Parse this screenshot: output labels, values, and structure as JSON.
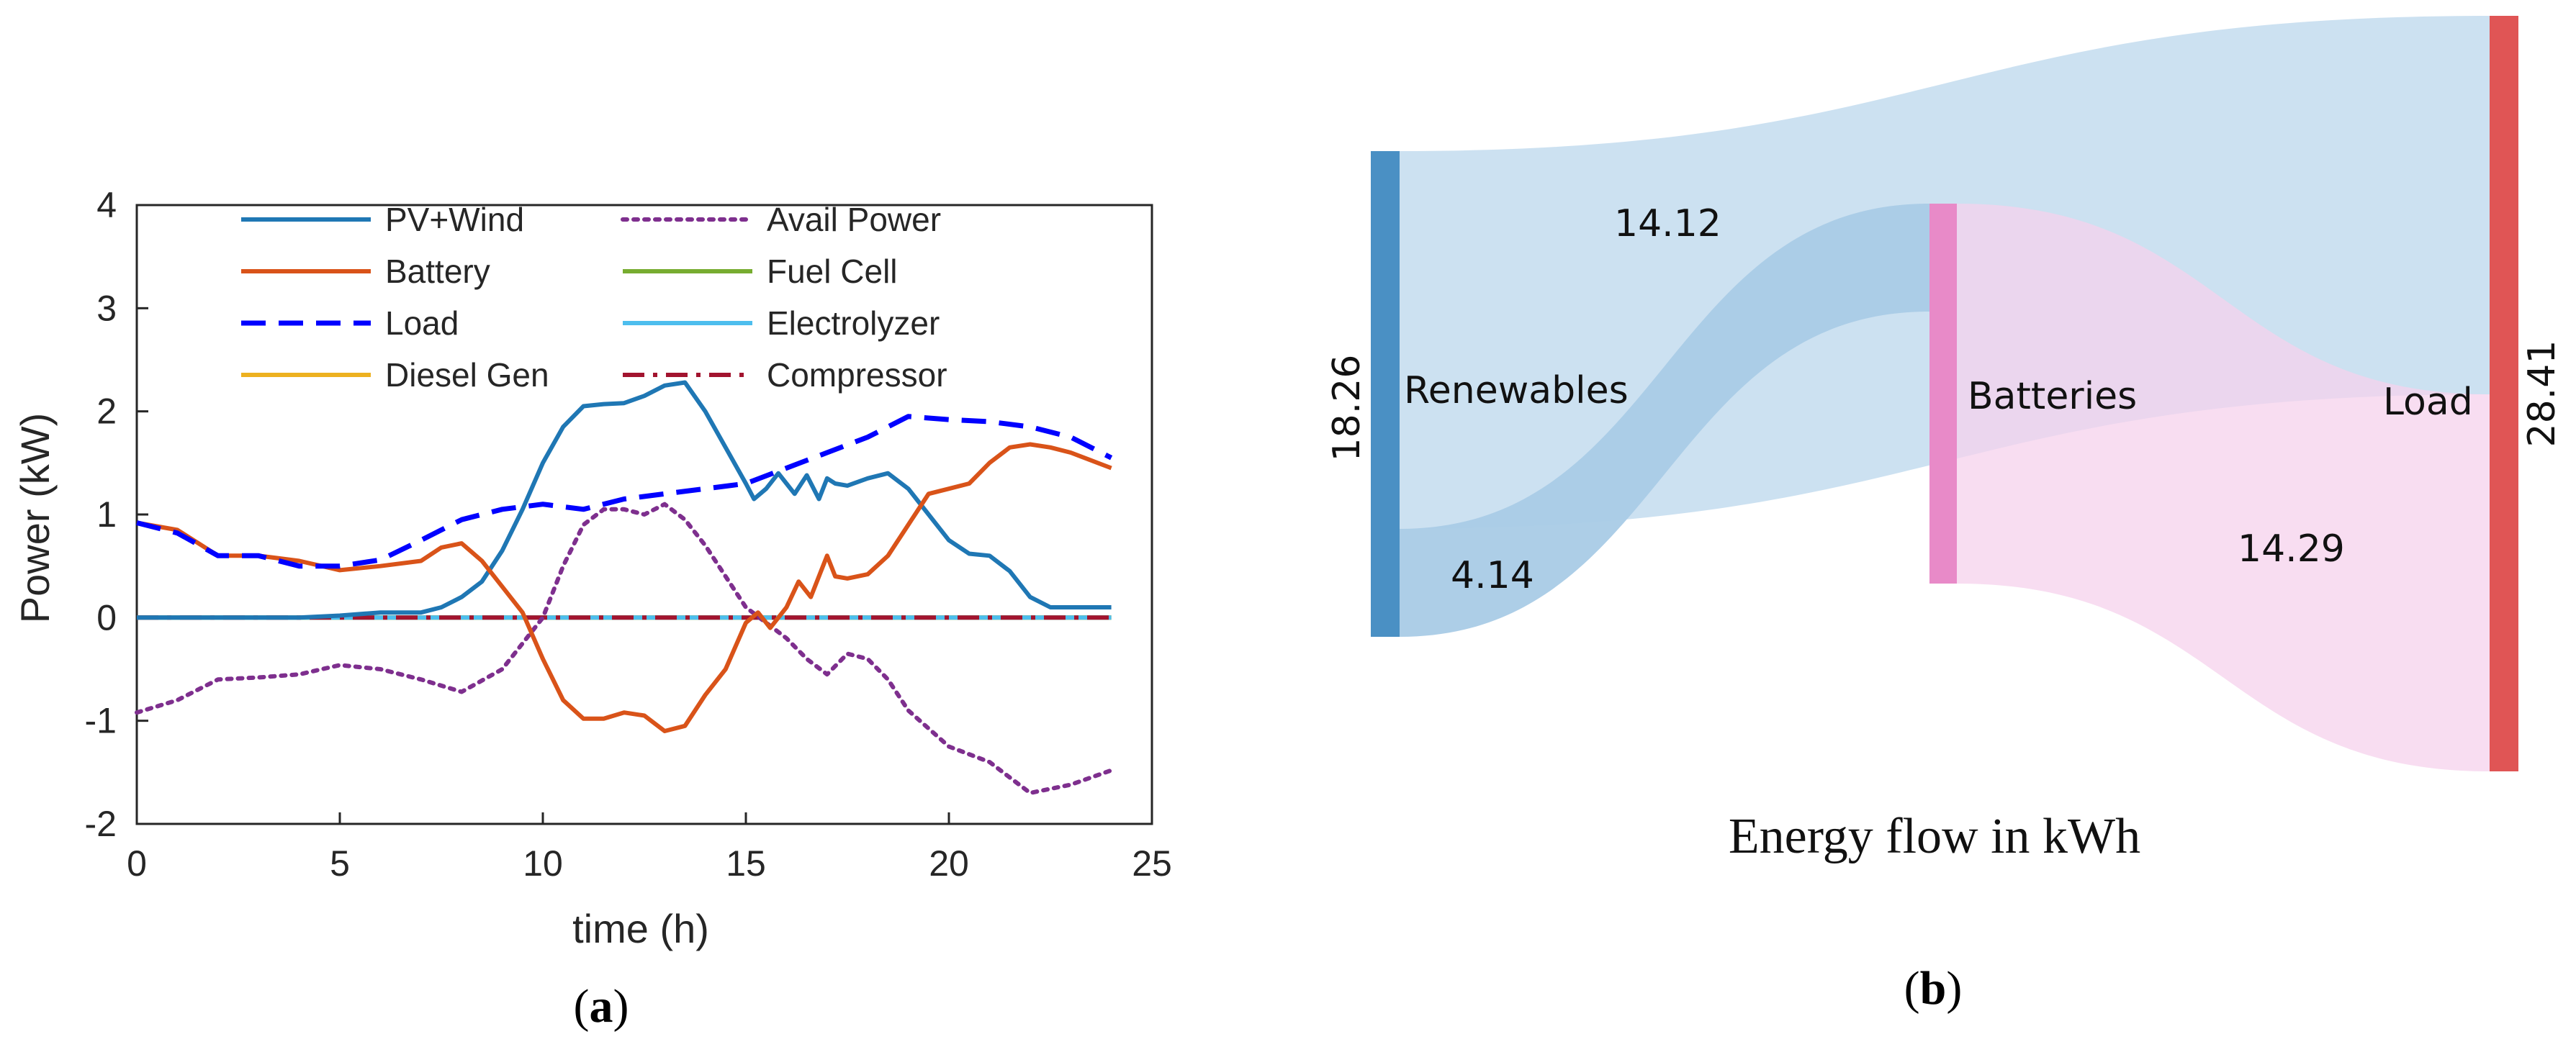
{
  "colors": {
    "pv_wind": "#1f77b4",
    "battery": "#d95319",
    "load": "#0000ff",
    "diesel": "#edb120",
    "avail": "#7e2f8e",
    "fuel_cell": "#77ac30",
    "electrolyzer": "#4dbeee",
    "compressor": "#a2142f",
    "renew_node": "#4a90c4",
    "batt_node": "#e88ac8",
    "load_node": "#e05555",
    "blue_flow": "#c9dff0",
    "pink_flow": "#f6d2ec"
  },
  "chart_data": [
    {
      "type": "line",
      "panel": "(a)",
      "caption_letter": "a",
      "xlabel": "time  (h)",
      "ylabel": "Power (kW)",
      "xlim": [
        0,
        25
      ],
      "ylim": [
        -2,
        4
      ],
      "xticks": [
        "0",
        "5",
        "10",
        "15",
        "20",
        "25"
      ],
      "yticks": [
        "-2",
        "-1",
        "0",
        "1",
        "2",
        "3",
        "4"
      ],
      "legend_position": "top, two columns",
      "series": [
        {
          "name": "PV+Wind",
          "color_key": "pv_wind",
          "style": "solid",
          "x": [
            0,
            2,
            4,
            5,
            6,
            7,
            7.5,
            8,
            8.5,
            9,
            9.5,
            10,
            10.5,
            11,
            11.5,
            12,
            12.5,
            13,
            13.5,
            14,
            14.5,
            15,
            15.2,
            15.5,
            15.8,
            16,
            16.2,
            16.5,
            16.8,
            17,
            17.2,
            17.5,
            18,
            18.5,
            19,
            19.5,
            20,
            20.5,
            21,
            21.5,
            22,
            22.5,
            23,
            24
          ],
          "y": [
            0.0,
            0.0,
            0.0,
            0.02,
            0.05,
            0.05,
            0.1,
            0.2,
            0.35,
            0.65,
            1.05,
            1.5,
            1.85,
            2.05,
            2.07,
            2.08,
            2.15,
            2.25,
            2.28,
            2.0,
            1.65,
            1.3,
            1.15,
            1.25,
            1.4,
            1.3,
            1.2,
            1.38,
            1.15,
            1.35,
            1.3,
            1.28,
            1.35,
            1.4,
            1.25,
            1.0,
            0.75,
            0.62,
            0.6,
            0.45,
            0.2,
            0.1,
            0.1,
            0.1
          ]
        },
        {
          "name": "Avail Power",
          "color_key": "avail",
          "style": "dotted",
          "x": [
            0,
            1,
            2,
            3,
            4,
            5,
            6,
            7,
            8,
            9,
            10,
            10.5,
            11,
            11.5,
            12,
            12.5,
            13,
            13.5,
            14,
            14.5,
            15,
            15.5,
            16,
            16.5,
            17,
            17.5,
            18,
            18.5,
            19,
            20,
            21,
            22,
            23,
            24
          ],
          "y": [
            -0.92,
            -0.8,
            -0.6,
            -0.58,
            -0.55,
            -0.46,
            -0.5,
            -0.6,
            -0.72,
            -0.5,
            0.0,
            0.5,
            0.9,
            1.05,
            1.05,
            1.0,
            1.1,
            0.95,
            0.7,
            0.4,
            0.1,
            -0.05,
            -0.2,
            -0.4,
            -0.55,
            -0.35,
            -0.4,
            -0.6,
            -0.9,
            -1.25,
            -1.4,
            -1.7,
            -1.62,
            -1.48
          ]
        },
        {
          "name": "Battery",
          "color_key": "battery",
          "style": "solid",
          "x": [
            0,
            1,
            2,
            3,
            4,
            5,
            6,
            7,
            7.5,
            8,
            8.5,
            9,
            9.5,
            10,
            10.5,
            11,
            11.5,
            12,
            12.5,
            13,
            13.5,
            14,
            14.5,
            15,
            15.3,
            15.6,
            16,
            16.3,
            16.6,
            17,
            17.2,
            17.5,
            18,
            18.5,
            19,
            19.5,
            20,
            20.5,
            21,
            21.5,
            22,
            22.5,
            23,
            24
          ],
          "y": [
            0.92,
            0.85,
            0.6,
            0.6,
            0.55,
            0.46,
            0.5,
            0.55,
            0.68,
            0.72,
            0.55,
            0.3,
            0.05,
            -0.4,
            -0.8,
            -0.98,
            -0.98,
            -0.92,
            -0.95,
            -1.1,
            -1.05,
            -0.75,
            -0.5,
            -0.05,
            0.05,
            -0.1,
            0.1,
            0.35,
            0.2,
            0.6,
            0.4,
            0.38,
            0.42,
            0.6,
            0.9,
            1.2,
            1.25,
            1.3,
            1.5,
            1.65,
            1.68,
            1.65,
            1.6,
            1.45
          ]
        },
        {
          "name": "Fuel Cell",
          "color_key": "fuel_cell",
          "style": "solid",
          "x": [
            0,
            24
          ],
          "y": [
            0,
            0
          ]
        },
        {
          "name": "Load",
          "color_key": "load",
          "style": "dashed",
          "x": [
            0,
            1,
            2,
            3,
            4,
            5,
            6,
            7,
            8,
            9,
            10,
            11,
            12,
            13,
            14,
            15,
            16,
            17,
            18,
            19,
            20,
            21,
            22,
            23,
            24
          ],
          "y": [
            0.92,
            0.82,
            0.6,
            0.6,
            0.5,
            0.5,
            0.56,
            0.75,
            0.95,
            1.05,
            1.1,
            1.05,
            1.15,
            1.2,
            1.25,
            1.3,
            1.45,
            1.6,
            1.75,
            1.95,
            1.92,
            1.9,
            1.85,
            1.75,
            1.55
          ]
        },
        {
          "name": "Electrolyzer",
          "color_key": "electrolyzer",
          "style": "solid",
          "x": [
            0,
            24
          ],
          "y": [
            0,
            0
          ]
        },
        {
          "name": "Diesel Gen",
          "color_key": "diesel",
          "style": "solid",
          "x": [
            0,
            24
          ],
          "y": [
            0,
            0
          ]
        },
        {
          "name": "Compressor",
          "color_key": "compressor",
          "style": "dashdot",
          "x": [
            0,
            24
          ],
          "y": [
            0,
            0
          ]
        }
      ]
    },
    {
      "type": "sankey",
      "panel": "(b)",
      "caption_letter": "b",
      "title": "Energy flow in kWh",
      "nodes": [
        {
          "name": "Renewables",
          "value": "18.26"
        },
        {
          "name": "Batteries",
          "value": ""
        },
        {
          "name": "Load",
          "value": "28.41"
        }
      ],
      "links": [
        {
          "source": "Renewables",
          "target": "Load",
          "value": 14.12,
          "label": "14.12"
        },
        {
          "source": "Renewables",
          "target": "Batteries",
          "value": 4.14,
          "label": "4.14"
        },
        {
          "source": "Batteries",
          "target": "Load",
          "value": 14.29,
          "label": "14.29"
        }
      ]
    }
  ]
}
